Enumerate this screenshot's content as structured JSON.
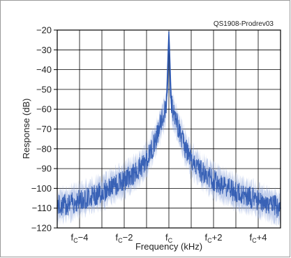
{
  "figure_id": "QS1908-Prodrev03",
  "chart_data": {
    "type": "line",
    "title": "",
    "xlabel": "Frequency (kHz)",
    "ylabel": "Response (dB)",
    "xlim": [
      -5,
      5
    ],
    "ylim": [
      -120,
      -20
    ],
    "grid": true,
    "y_ticks": [
      -20,
      -30,
      -40,
      -50,
      -60,
      -70,
      -80,
      -90,
      -100,
      -110,
      -120
    ],
    "x_ticks": [
      {
        "x": -4,
        "base": "f",
        "sub": "C",
        "suffix": "−4"
      },
      {
        "x": -2,
        "base": "f",
        "sub": "C",
        "suffix": "−2"
      },
      {
        "x": 0,
        "base": "f",
        "sub": "C",
        "suffix": ""
      },
      {
        "x": 2,
        "base": "f",
        "sub": "C",
        "suffix": "+2"
      },
      {
        "x": 4,
        "base": "f",
        "sub": "C",
        "suffix": "+4"
      }
    ],
    "x_grid": [
      -4,
      -3,
      -2,
      -1,
      0,
      1,
      2,
      3,
      4
    ],
    "series": [
      {
        "color": "#2a55b0",
        "x": [
          -5,
          -4.5,
          -4,
          -3.5,
          -3,
          -2.5,
          -2,
          -1.5,
          -1,
          -0.75,
          -0.5,
          -0.3,
          -0.15,
          -0.05,
          0,
          0.05,
          0.15,
          0.3,
          0.5,
          0.75,
          1,
          1.5,
          2,
          2.5,
          3,
          3.5,
          4,
          4.5,
          5
        ],
        "y": [
          -109,
          -108,
          -106,
          -104,
          -102,
          -99,
          -96,
          -92,
          -86,
          -80,
          -72,
          -65,
          -60,
          -50,
          -21,
          -50,
          -60,
          -65,
          -72,
          -80,
          -86,
          -92,
          -96,
          -99,
          -102,
          -104,
          -106,
          -108,
          -110
        ]
      }
    ]
  }
}
